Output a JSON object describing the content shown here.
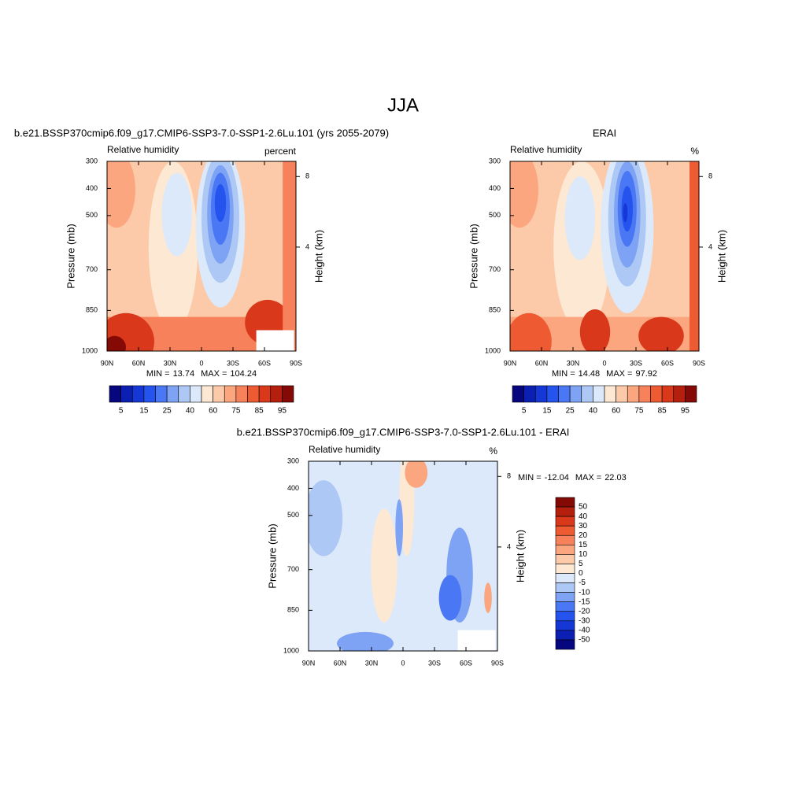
{
  "figure_title": "JJA",
  "chart_data": [
    {
      "type": "contour",
      "title": "b.e21.BSSP370cmip6.f09_g17.CMIP6-SSP3-7.0-SSP1-2.6Lu.101 (yrs 2055-2079)",
      "left_label": "Relative humidity",
      "right_label": "percent",
      "ylabel": "Pressure (mb)",
      "y2label": "Height (km)",
      "xlim": [
        90,
        -90
      ],
      "xticks": [
        {
          "value": 90,
          "label": "90N"
        },
        {
          "value": 60,
          "label": "60N"
        },
        {
          "value": 30,
          "label": "30N"
        },
        0,
        {
          "value": -30,
          "label": "30S"
        },
        {
          "value": -60,
          "label": "60S"
        },
        {
          "value": -90,
          "label": "90S"
        }
      ],
      "ylim": [
        1000,
        300
      ],
      "yticks": [
        300,
        400,
        500,
        700,
        850,
        1000
      ],
      "y2ticks": [
        8,
        4
      ],
      "min_label": "MIN =",
      "min": 13.74,
      "max_label": "MAX =",
      "max": 104.24,
      "colorbar": {
        "orientation": "horizontal",
        "levels": [
          5,
          15,
          25,
          40,
          60,
          75,
          85,
          95
        ],
        "colors": [
          "#06067e",
          "#0b1fb2",
          "#1537d6",
          "#2553ee",
          "#4a78f4",
          "#7ea3f4",
          "#adc8f5",
          "#dbe9fa",
          "#fde8d4",
          "#fccaa8",
          "#fba67e",
          "#f7815a",
          "#ee5b33",
          "#d9381a",
          "#b5200e",
          "#850a05"
        ]
      }
    },
    {
      "type": "contour",
      "title": "ERAI",
      "left_label": "Relative humidity",
      "right_label": "%",
      "ylabel": "Pressure (mb)",
      "y2label": "Height (km)",
      "xlim": [
        90,
        -90
      ],
      "xticks": [
        {
          "value": 90,
          "label": "90N"
        },
        {
          "value": 60,
          "label": "60N"
        },
        {
          "value": 30,
          "label": "30N"
        },
        0,
        {
          "value": -30,
          "label": "30S"
        },
        {
          "value": -60,
          "label": "60S"
        },
        {
          "value": -90,
          "label": "90S"
        }
      ],
      "ylim": [
        1000,
        300
      ],
      "yticks": [
        300,
        400,
        500,
        700,
        850,
        1000
      ],
      "y2ticks": [
        8,
        4
      ],
      "min_label": "MIN =",
      "min": 14.48,
      "max_label": "MAX =",
      "max": 97.92,
      "colorbar": {
        "orientation": "horizontal",
        "levels": [
          5,
          15,
          25,
          40,
          60,
          75,
          85,
          95
        ],
        "colors": [
          "#06067e",
          "#0b1fb2",
          "#1537d6",
          "#2553ee",
          "#4a78f4",
          "#7ea3f4",
          "#adc8f5",
          "#dbe9fa",
          "#fde8d4",
          "#fccaa8",
          "#fba67e",
          "#f7815a",
          "#ee5b33",
          "#d9381a",
          "#b5200e",
          "#850a05"
        ]
      }
    },
    {
      "type": "contour",
      "title": "b.e21.BSSP370cmip6.f09_g17.CMIP6-SSP3-7.0-SSP1-2.6Lu.101 - ERAI",
      "left_label": "Relative humidity",
      "right_label": "%",
      "ylabel": "Pressure (mb)",
      "y2label": "Height (km)",
      "xlim": [
        90,
        -90
      ],
      "xticks": [
        {
          "value": 90,
          "label": "90N"
        },
        {
          "value": 60,
          "label": "60N"
        },
        {
          "value": 30,
          "label": "30N"
        },
        0,
        {
          "value": -30,
          "label": "30S"
        },
        {
          "value": -60,
          "label": "60S"
        },
        {
          "value": -90,
          "label": "90S"
        }
      ],
      "ylim": [
        1000,
        300
      ],
      "yticks": [
        300,
        400,
        500,
        700,
        850,
        1000
      ],
      "y2ticks": [
        8,
        4
      ],
      "min_label": "MIN =",
      "min": -12.04,
      "max_label": "MAX =",
      "max": 22.03,
      "colorbar": {
        "orientation": "vertical",
        "levels": [
          50,
          40,
          30,
          20,
          15,
          10,
          5,
          0,
          -5,
          -10,
          -15,
          -20,
          -30,
          -40,
          -50
        ],
        "colors": [
          "#850a05",
          "#b5200e",
          "#d9381a",
          "#ee5b33",
          "#f7815a",
          "#fba67e",
          "#fccaa8",
          "#fde8d4",
          "#dbe9fa",
          "#adc8f5",
          "#7ea3f4",
          "#4a78f4",
          "#2553ee",
          "#1537d6",
          "#0b1fb2",
          "#06067e"
        ]
      }
    }
  ]
}
